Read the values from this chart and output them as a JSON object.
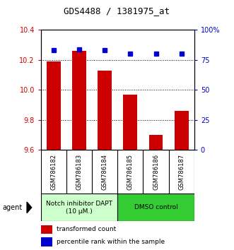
{
  "title": "GDS4488 / 1381975_at",
  "samples": [
    "GSM786182",
    "GSM786183",
    "GSM786184",
    "GSM786185",
    "GSM786186",
    "GSM786187"
  ],
  "bar_values": [
    10.19,
    10.26,
    10.13,
    9.97,
    9.7,
    9.86
  ],
  "percentile_values": [
    83,
    84,
    83,
    80,
    80,
    80
  ],
  "ylim_left": [
    9.6,
    10.4
  ],
  "ylim_right": [
    0,
    100
  ],
  "yticks_left": [
    9.6,
    9.8,
    10.0,
    10.2,
    10.4
  ],
  "yticks_right": [
    0,
    25,
    50,
    75,
    100
  ],
  "ytick_labels_right": [
    "0",
    "25",
    "50",
    "75",
    "100%"
  ],
  "bar_color": "#cc0000",
  "dot_color": "#0000cc",
  "bar_bottom": 9.6,
  "group1_label": "Notch inhibitor DAPT\n(10 μM.)",
  "group2_label": "DMSO control",
  "group1_color": "#ccffcc",
  "group2_color": "#33cc33",
  "agent_label": "agent",
  "legend_bar_label": "transformed count",
  "legend_dot_label": "percentile rank within the sample",
  "ax_bg": "#ffffff",
  "tick_area_bg": "#cccccc",
  "title_fontsize": 9,
  "axis_fontsize": 7,
  "label_fontsize": 7
}
